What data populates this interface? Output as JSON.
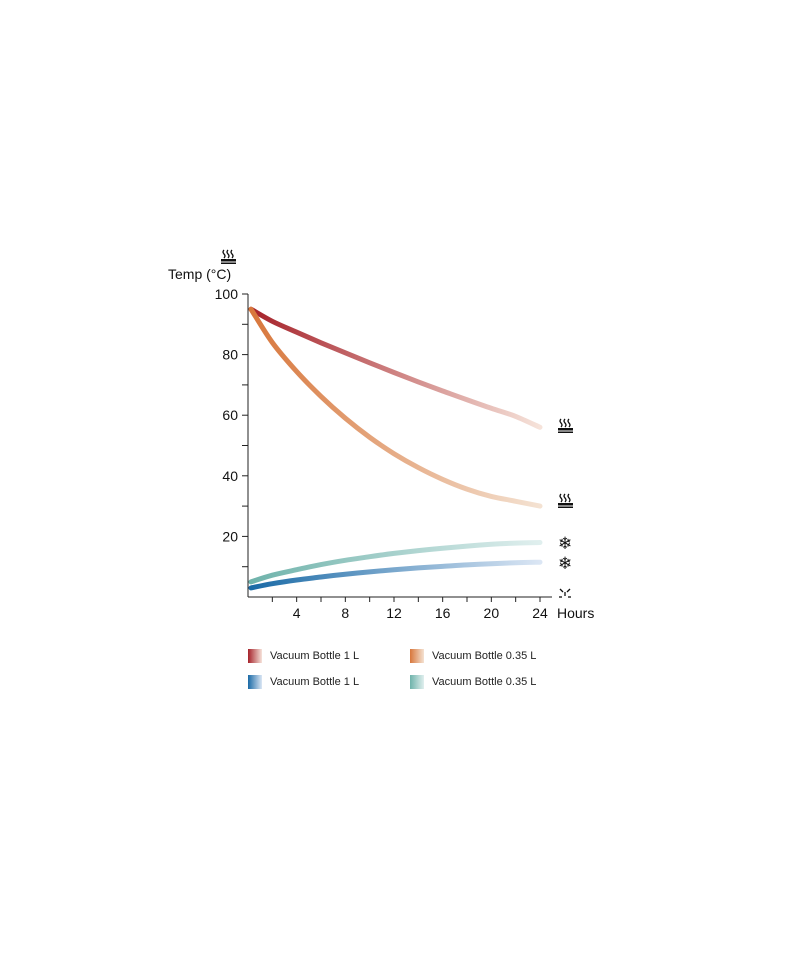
{
  "chart_data": {
    "type": "line",
    "ylabel": "Temp (°C)",
    "xlabel": "Hours",
    "x_ticks": [
      4,
      8,
      12,
      16,
      20,
      24
    ],
    "y_ticks": [
      20,
      40,
      60,
      80,
      100
    ],
    "xlim": [
      0,
      24
    ],
    "ylim": [
      0,
      100
    ],
    "grid": false,
    "legend_position": "bottom",
    "icons": {
      "y_axis_top": "steam-icon",
      "hot_end": "steam-icon",
      "cold_end": "snowflake-icon",
      "zero": "sun-icon"
    },
    "series": [
      {
        "name": "Vacuum Bottle 1 L",
        "group": "hot",
        "color_start": "#a6222a",
        "color_end": "#f6e3da",
        "x": [
          0,
          2,
          4,
          6,
          8,
          10,
          12,
          14,
          16,
          18,
          20,
          22,
          24
        ],
        "y": [
          95,
          91,
          87.4,
          83.9,
          80.6,
          77.3,
          74.1,
          71,
          68,
          65.1,
          62.3,
          59.6,
          56
        ]
      },
      {
        "name": "Vacuum Bottle 0.35 L",
        "group": "hot",
        "color_start": "#d8773c",
        "color_end": "#f4e2d2",
        "x": [
          0,
          2,
          4,
          6,
          8,
          10,
          12,
          14,
          16,
          18,
          20,
          22,
          24
        ],
        "y": [
          95,
          84,
          74.4,
          66.2,
          59,
          52.7,
          47.3,
          42.7,
          38.8,
          35.6,
          33.2,
          31.6,
          30
        ]
      },
      {
        "name": "Vacuum Bottle 1 L",
        "group": "cold",
        "color_start": "#1a6aa6",
        "color_end": "#dbe6f4",
        "x": [
          0,
          2,
          4,
          6,
          8,
          10,
          12,
          14,
          16,
          18,
          20,
          22,
          24
        ],
        "y": [
          3,
          4.4,
          5.6,
          6.6,
          7.5,
          8.3,
          9,
          9.6,
          10.1,
          10.6,
          11,
          11.3,
          11.5
        ]
      },
      {
        "name": "Vacuum Bottle 0.35 L",
        "group": "cold",
        "color_start": "#6fb3ab",
        "color_end": "#e0efee",
        "x": [
          0,
          2,
          4,
          6,
          8,
          10,
          12,
          14,
          16,
          18,
          20,
          22,
          24
        ],
        "y": [
          5,
          7.2,
          9,
          10.7,
          12.1,
          13.3,
          14.4,
          15.3,
          16.1,
          16.8,
          17.4,
          17.8,
          18
        ]
      }
    ]
  }
}
